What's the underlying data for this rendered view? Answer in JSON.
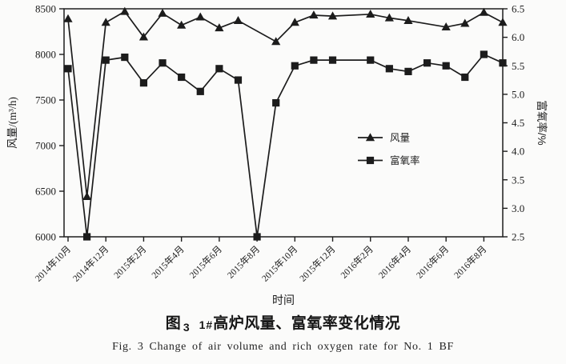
{
  "page": {
    "background": "#fbfbfa",
    "ink": "#1c1c1c"
  },
  "title": {
    "fig_label": "图",
    "fig_number": "3",
    "prefix": "1#",
    "text": "高炉风量、富氧率变化情况"
  },
  "caption": {
    "text": "Fig. 3   Change of air volume and rich oxygen rate for No. 1 BF"
  },
  "chart_data": {
    "type": "line",
    "title": "",
    "xlabel": "时间",
    "grid": false,
    "legend_position": "inside-center-right",
    "x": [
      "2014年10月",
      "2014年11月",
      "2014年12月",
      "2015年1月",
      "2015年2月",
      "2015年3月",
      "2015年4月",
      "2015年5月",
      "2015年6月",
      "2015年7月",
      "2015年8月",
      "2015年9月",
      "2015年10月",
      "2015年11月",
      "2015年12月",
      "2016年1月",
      "2016年2月",
      "2016年3月",
      "2016年4月",
      "2016年5月",
      "2016年6月",
      "2016年7月",
      "2016年8月",
      "2016年9月"
    ],
    "x_tick_labels": [
      "2014年10月",
      "2014年12月",
      "2015年2月",
      "2015年4月",
      "2015年6月",
      "2015年8月",
      "2015年10月",
      "2015年12月",
      "2016年2月",
      "2016年4月",
      "2016年6月",
      "2016年8月"
    ],
    "y_left": {
      "label": "风量/(m³/h)",
      "min": 6000,
      "max": 8500,
      "step": 500
    },
    "y_right": {
      "label": "富氧率/%",
      "min": 2.5,
      "max": 6.5,
      "step": 0.5
    },
    "series": [
      {
        "name": "风量",
        "id": "air-volume",
        "axis": "left",
        "marker": "triangle",
        "color": "#1c1c1c",
        "values": [
          8390,
          6440,
          8350,
          8470,
          8190,
          8450,
          8320,
          8410,
          8290,
          8370,
          null,
          8140,
          8350,
          8430,
          8420,
          null,
          8440,
          8400,
          8370,
          null,
          8300,
          8340,
          8460,
          8350
        ]
      },
      {
        "name": "富氧率",
        "id": "oxygen-rate",
        "axis": "right",
        "marker": "square",
        "color": "#1c1c1c",
        "values": [
          5.45,
          2.5,
          5.6,
          5.65,
          5.2,
          5.55,
          5.3,
          5.05,
          5.45,
          5.25,
          2.5,
          4.85,
          5.5,
          5.6,
          5.6,
          null,
          5.6,
          5.45,
          5.4,
          5.55,
          5.5,
          5.3,
          5.7,
          5.55
        ]
      }
    ]
  }
}
